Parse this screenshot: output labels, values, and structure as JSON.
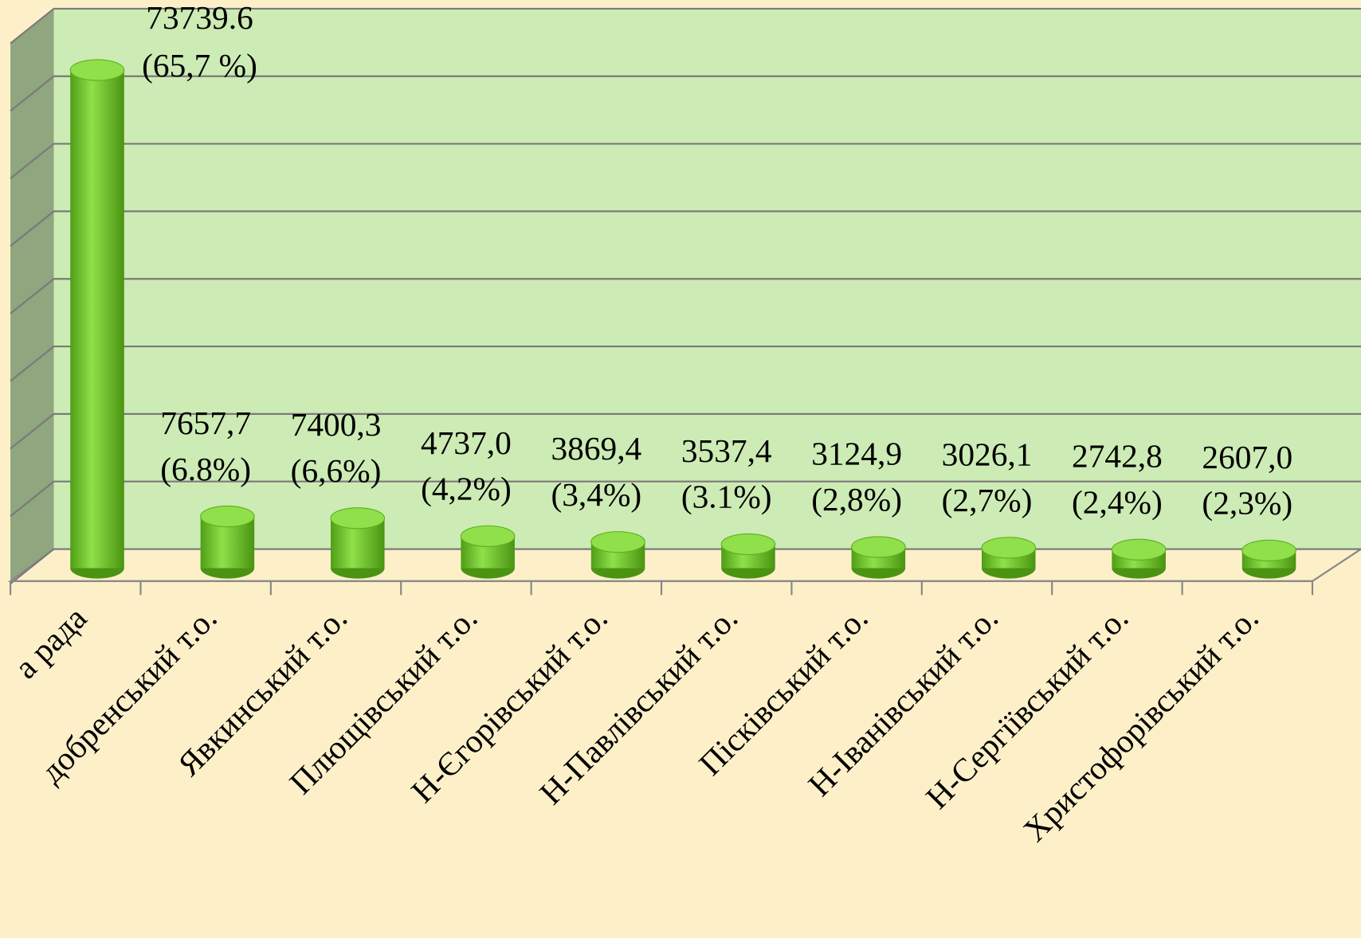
{
  "chart_data": {
    "type": "bar",
    "categories": [
      "а рада",
      "добренський т.о.",
      "Явкинський т.о.",
      "Плющівський т.о.",
      "Н-Єгорівський т.о.",
      "Н-Павлівський т.о.",
      "Пісківський т.о.",
      "Н-Іванівський т.о.",
      "Н-Сергіївський т.о.",
      "Христофорівський т.о."
    ],
    "values": [
      73739.6,
      7657.7,
      7400.3,
      4737.0,
      3869.4,
      3537.4,
      3124.9,
      3026.1,
      2742.8,
      2607.0
    ],
    "value_labels": [
      "73739.6",
      "7657,7",
      "7400,3",
      "4737,0",
      "3869,4",
      "3537,4",
      "3124,9",
      "3026,1",
      "2742,8",
      "2607,0"
    ],
    "share_labels": [
      "(65,7 %)",
      "(6.8%)",
      "(6,6%)",
      "(4,2%)",
      "(3,4%)",
      "(3.1%)",
      "(2,8%)",
      "(2,7%)",
      "(2,4%)",
      "(2,3%)"
    ],
    "color": "#7ccf2f",
    "ylim": [
      0,
      80000
    ],
    "yticks": [
      0,
      10000,
      20000,
      30000,
      40000,
      50000,
      60000,
      70000,
      80000
    ],
    "grid": true
  }
}
